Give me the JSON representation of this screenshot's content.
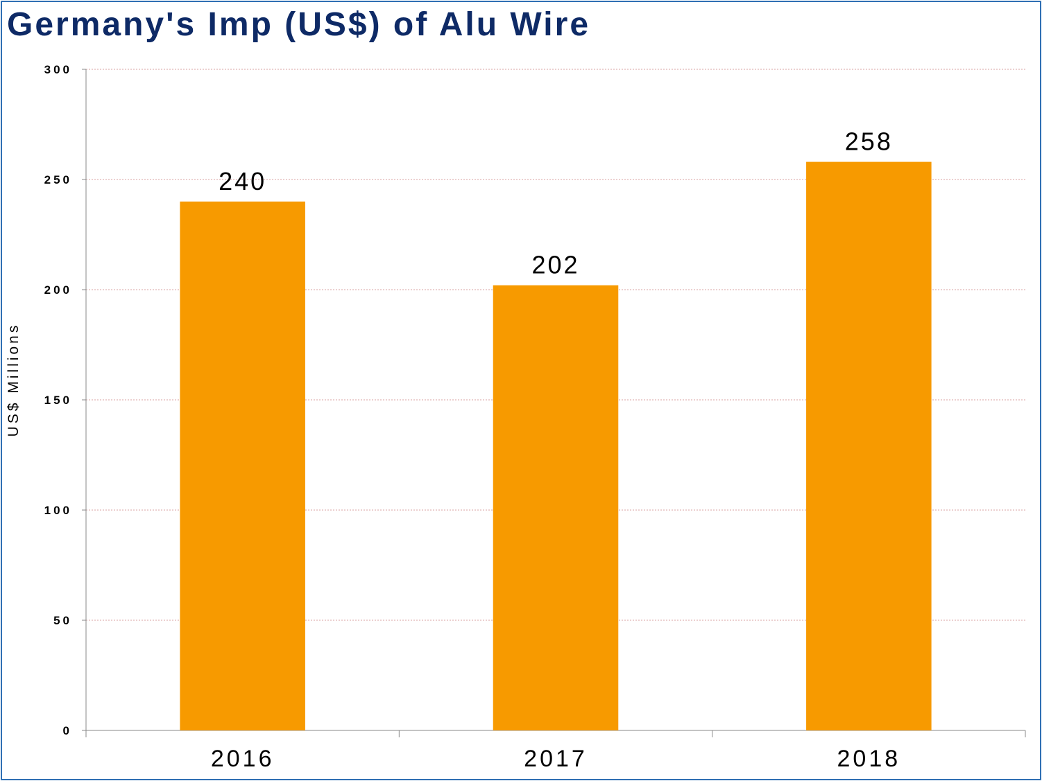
{
  "chart_data": {
    "type": "bar",
    "title": "Germany's Imp (US$) of Alu Wire",
    "xlabel": "",
    "ylabel": "US$ Millions",
    "categories": [
      "2016",
      "2017",
      "2018"
    ],
    "values": [
      240,
      202,
      258
    ],
    "data_labels": [
      "240",
      "202",
      "258"
    ],
    "ylim": [
      0,
      300
    ],
    "yticks": [
      0,
      50,
      100,
      150,
      200,
      250,
      300
    ],
    "ytick_labels": [
      "0",
      "50",
      "100",
      "150",
      "200",
      "250",
      "300"
    ],
    "grid": true,
    "legend": "none",
    "colors": {
      "bar": "#f79a00",
      "title": "#0e2a66",
      "frame": "#2f6fb3",
      "grid": "#d9a0a0"
    }
  }
}
